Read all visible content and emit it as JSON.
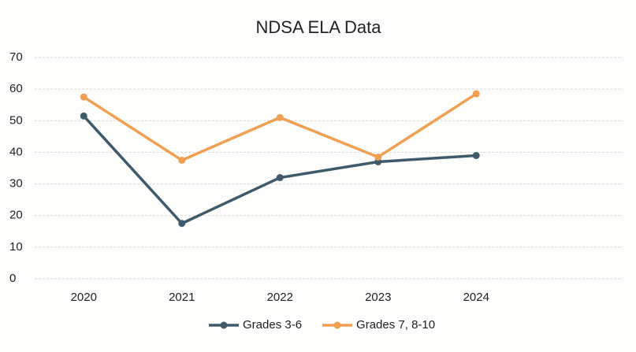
{
  "chart_data": {
    "type": "line",
    "title": "NDSA ELA Data",
    "categories": [
      "2020",
      "2021",
      "2022",
      "2023",
      "2024"
    ],
    "series": [
      {
        "name": "Grades 3-6",
        "color": "#3f5b6b",
        "values": [
          51.5,
          17.5,
          32,
          37,
          39
        ]
      },
      {
        "name": "Grades 7, 8-10",
        "color": "#f0a052",
        "values": [
          57.5,
          37.5,
          51,
          38.5,
          58.5
        ]
      }
    ],
    "ylim": [
      0,
      70
    ],
    "yticks": [
      0,
      10,
      20,
      30,
      40,
      50,
      60,
      70
    ],
    "grid": true,
    "legend": "bottom"
  }
}
